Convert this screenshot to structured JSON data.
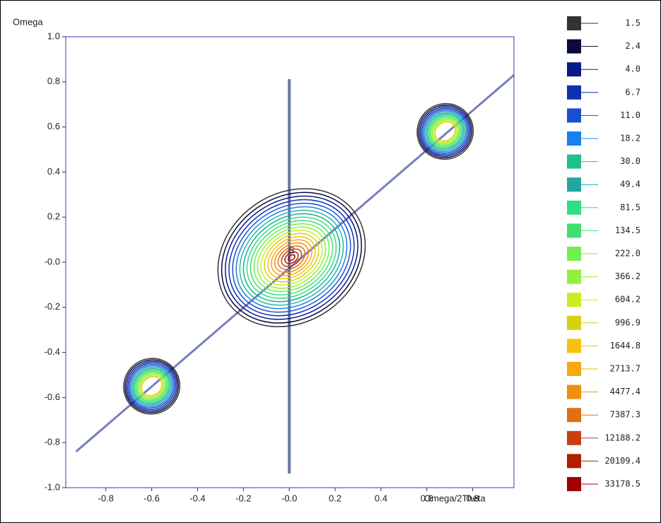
{
  "chart_data": {
    "type": "contour",
    "ylabel": "Omega",
    "xlabel": "Omega/2Theta",
    "annotation": "S",
    "xlim": [
      -0.975,
      0.98
    ],
    "ylim": [
      -1,
      1
    ],
    "xticks": [
      -0.8,
      -0.6,
      -0.4,
      -0.2,
      {
        "value": 0,
        "label": "-0.0"
      },
      0.2,
      0.4,
      0.6,
      0.8
    ],
    "yticks": [
      {
        "value": 1,
        "label": "1.0"
      },
      0.8,
      0.6,
      0.4,
      0.2,
      {
        "value": 0,
        "label": "-0.0"
      },
      -0.2,
      -0.4,
      -0.6,
      -0.8,
      {
        "value": -1,
        "label": "-1.0"
      }
    ],
    "levels": [
      1.5,
      2.4,
      4,
      6.7,
      11,
      18.2,
      30,
      49.4,
      81.5,
      134.5,
      222,
      366.2,
      604.2,
      996.9,
      1644.8,
      2713.7,
      4477.4,
      7387.3,
      12188.2,
      20109.4,
      33178.5
    ],
    "level_labels": [
      "1.5",
      "2.4",
      "4.0",
      "6.7",
      "11.0",
      "18.2",
      "30.0",
      "49.4",
      "81.5",
      "134.5",
      "222.0",
      "366.2",
      "604.2",
      "996.9",
      "1644.8",
      "2713.7",
      "4477.4",
      "7387.3",
      "12188.2",
      "20109.4",
      "33178.5"
    ],
    "level_colors": [
      "#333333",
      "#0a0a3c",
      "#0a1a8a",
      "#1030b0",
      "#1a50d0",
      "#1a80f0",
      "#20c090",
      "#20a8a0",
      "#30e080",
      "#40e070",
      "#70f050",
      "#90f040",
      "#c8f020",
      "#d8d010",
      "#f8c010",
      "#f8a810",
      "#f09010",
      "#e07010",
      "#c84010",
      "#b02000",
      "#a00000"
    ]
  }
}
